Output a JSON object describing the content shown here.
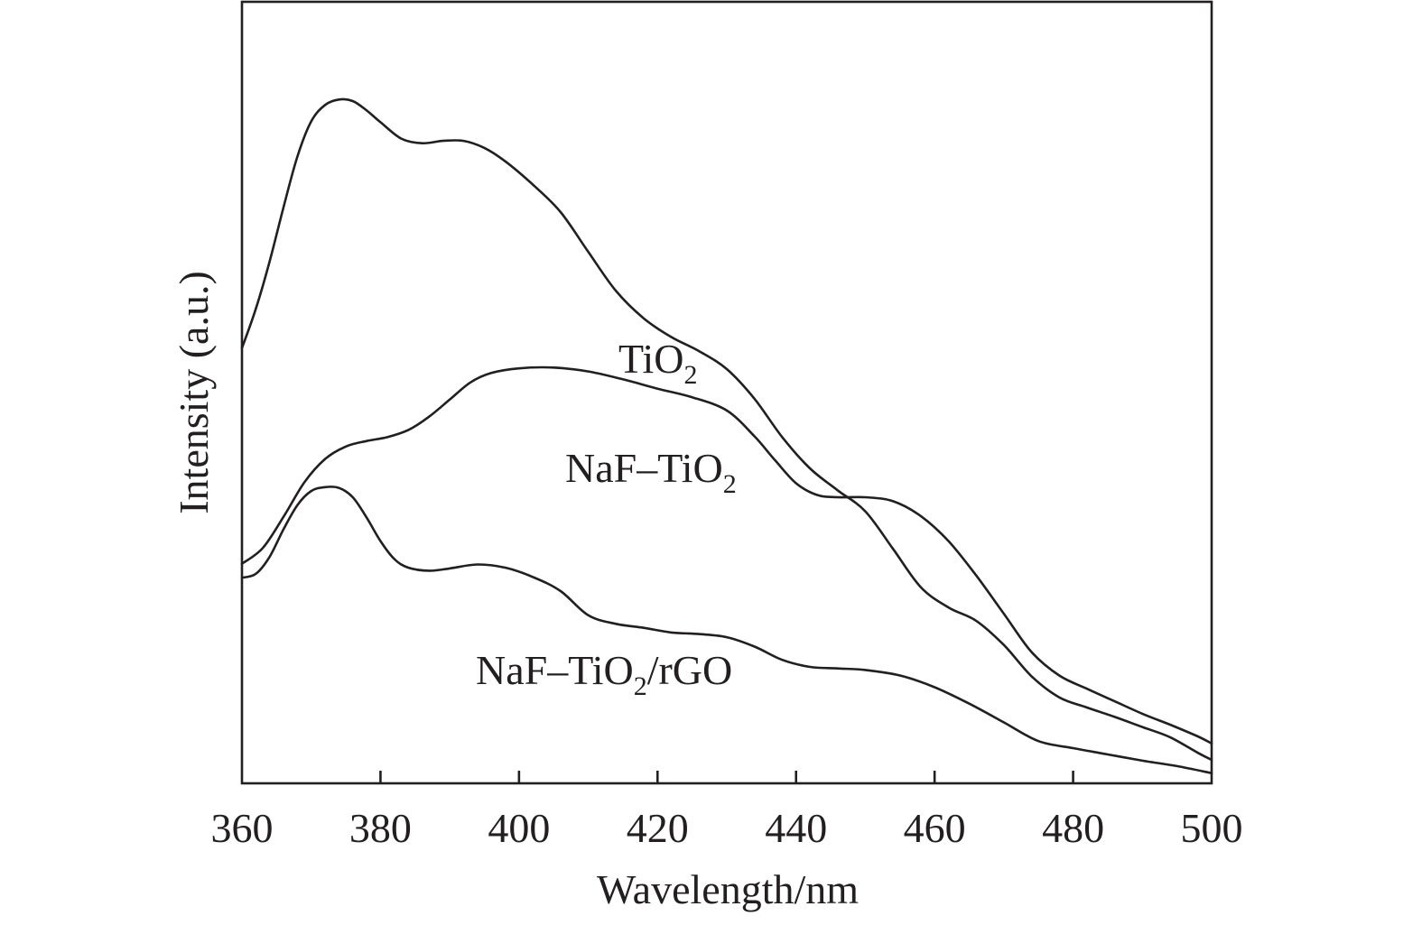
{
  "chart_data": {
    "type": "line",
    "xlabel": "Wavelength/nm",
    "ylabel": "Intensity (a.u.)",
    "xlim": [
      360,
      500
    ],
    "ylim": [
      0,
      100
    ],
    "x_ticks": [
      360,
      380,
      400,
      420,
      440,
      460,
      480,
      500
    ],
    "y_ticks": [],
    "grid": false,
    "legend": "none",
    "line_color": "#231f20",
    "series": [
      {
        "name": "TiO2",
        "label_main": "TiO",
        "label_sub": "2",
        "label_rest": "",
        "x": [
          360,
          362,
          364,
          366,
          368,
          370,
          372,
          374,
          376,
          378,
          380,
          383,
          386,
          389,
          392,
          395,
          398,
          402,
          406,
          410,
          414,
          418,
          422,
          426,
          430,
          434,
          438,
          442,
          446,
          450,
          454,
          458,
          462,
          466,
          470,
          474,
          478,
          482,
          486,
          490,
          494,
          498,
          500
        ],
        "y": [
          55.7,
          60.7,
          66.8,
          73.7,
          80.2,
          84.7,
          86.8,
          87.5,
          87.3,
          86.1,
          84.6,
          82.5,
          81.9,
          82.2,
          82.2,
          81.3,
          79.6,
          76.6,
          73.1,
          68.0,
          63.0,
          59.5,
          57.1,
          55.3,
          53.0,
          49.2,
          44.3,
          40.3,
          37.5,
          34.8,
          30.0,
          25.1,
          22.5,
          20.8,
          17.7,
          13.7,
          11.0,
          9.7,
          8.5,
          7.2,
          5.9,
          3.9,
          3.0
        ]
      },
      {
        "name": "NaF–TiO2",
        "label_main": "NaF–TiO",
        "label_sub": "2",
        "label_rest": "",
        "x": [
          360,
          363,
          366,
          369,
          372,
          375,
          378,
          381,
          384,
          387,
          390,
          393,
          396,
          400,
          405,
          410,
          415,
          420,
          425,
          430,
          434,
          437,
          440,
          443,
          446,
          450,
          454,
          458,
          462,
          466,
          470,
          474,
          478,
          482,
          486,
          490,
          494,
          498,
          500
        ],
        "y": [
          28.1,
          30.1,
          34.1,
          38.5,
          41.5,
          43.1,
          43.8,
          44.3,
          45.2,
          46.9,
          49.1,
          51.3,
          52.5,
          53.1,
          53.2,
          52.7,
          51.7,
          50.5,
          49.4,
          47.7,
          44.4,
          41.3,
          38.4,
          36.9,
          36.6,
          36.6,
          36.1,
          34.2,
          31.0,
          26.6,
          21.7,
          16.8,
          13.8,
          12.1,
          10.5,
          8.9,
          7.5,
          6.0,
          5.1
        ]
      },
      {
        "name": "NaF–TiO2/rGO",
        "label_main": "NaF–TiO",
        "label_sub": "2",
        "label_rest": "/rGO",
        "x": [
          360,
          362,
          364,
          366,
          368,
          370,
          372,
          374,
          376,
          378,
          380,
          382,
          384,
          387,
          390,
          394,
          398,
          402,
          406,
          410,
          414,
          418,
          422,
          426,
          430,
          434,
          438,
          442,
          446,
          450,
          455,
          460,
          465,
          470,
          475,
          480,
          485,
          490,
          495,
          500
        ],
        "y": [
          26.3,
          26.8,
          29.0,
          32.5,
          35.6,
          37.4,
          37.9,
          37.8,
          36.6,
          34.0,
          31.0,
          28.7,
          27.6,
          27.2,
          27.5,
          28.0,
          27.6,
          26.4,
          24.6,
          21.5,
          20.4,
          19.9,
          19.3,
          19.1,
          18.7,
          17.5,
          15.8,
          14.9,
          14.7,
          14.5,
          13.8,
          12.3,
          10.2,
          7.8,
          5.4,
          4.5,
          3.7,
          2.9,
          2.2,
          1.3
        ]
      }
    ]
  }
}
